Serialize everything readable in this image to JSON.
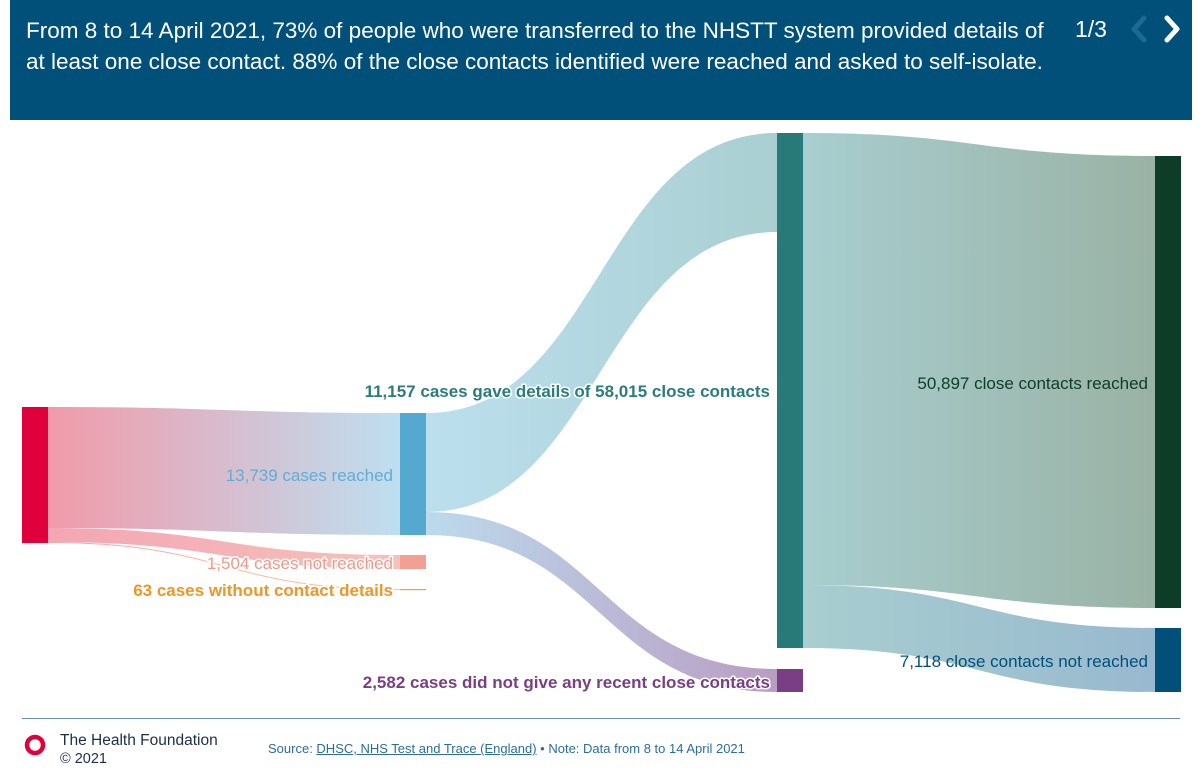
{
  "header": {
    "title": "From 8 to 14 April 2021, 73% of people who were transferred to the NHSTT system provided details of at least one close contact. 88% of the close contacts identified were reached and asked to self-isolate.",
    "pager": "1/3",
    "prev_icon": "chevron-left-icon",
    "next_icon": "chevron-right-icon"
  },
  "chart_data": {
    "type": "sankey",
    "nodes": [
      {
        "id": "transferred",
        "value": 15306,
        "color": "#e0003c"
      },
      {
        "id": "reached",
        "label": "13,739 cases reached",
        "value": 13739,
        "color": "#55a9d1",
        "label_color": "#63acd2"
      },
      {
        "id": "not_reached",
        "label": "1,504 cases not reached",
        "value": 1504,
        "color": "#f2a094",
        "label_color": "#eb9a8c"
      },
      {
        "id": "no_details",
        "label": "63 cases without contact details",
        "value": 63,
        "color": "#f2a032",
        "label_color": "#ee9626"
      },
      {
        "id": "gave_details",
        "label": "11,157 cases gave details of 58,015 close contacts",
        "value": 58015,
        "color": "#287a79",
        "label_color": "#2a7d7a"
      },
      {
        "id": "no_contacts",
        "label": "2,582 cases did not give any recent close contacts",
        "value": 2582,
        "color": "#7a3e85",
        "label_color": "#7a3e85"
      },
      {
        "id": "contacts_reached",
        "label": "50,897 close contacts reached",
        "value": 50897,
        "color": "#0d3d27",
        "label_color": "#0d3d27"
      },
      {
        "id": "contacts_not_reached",
        "label": "7,118 close contacts not reached",
        "value": 7118,
        "color": "#00507a",
        "label_color": "#00507a"
      }
    ],
    "links": [
      {
        "source": "transferred",
        "target": "reached",
        "value": 13739
      },
      {
        "source": "transferred",
        "target": "not_reached",
        "value": 1504
      },
      {
        "source": "transferred",
        "target": "no_details",
        "value": 63
      },
      {
        "source": "reached",
        "target": "gave_details",
        "value": 11157
      },
      {
        "source": "reached",
        "target": "no_contacts",
        "value": 2582
      },
      {
        "source": "gave_details",
        "target": "contacts_reached",
        "value": 50897
      },
      {
        "source": "gave_details",
        "target": "contacts_not_reached",
        "value": 7118
      }
    ]
  },
  "footer": {
    "org": "The Health Foundation",
    "copyright": "© 2021",
    "source_prefix": "Source: ",
    "source_link": "DHSC, NHS Test and Trace (England)",
    "source_note": " • Note: Data from 8 to 14 April 2021",
    "logo_color": "#e0003c"
  }
}
